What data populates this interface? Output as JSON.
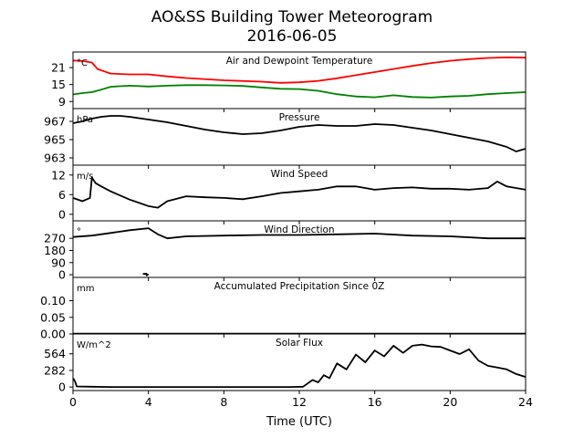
{
  "figure": {
    "title_line1": "AO&SS Building Tower Meteorogram",
    "title_line2": "2016-06-05",
    "xlabel": "Time (UTC)"
  },
  "chart_data": {
    "type": "line",
    "x_ticks": [
      0,
      4,
      8,
      12,
      16,
      20,
      24
    ],
    "x_tick_labels": [
      "0",
      "4",
      "8",
      "12",
      "16",
      "20",
      "24"
    ],
    "xlim": [
      0,
      24
    ],
    "panels": [
      {
        "id": "temp",
        "title": "Air and Dewpoint Temperature",
        "unit": "°C",
        "ylim": [
          6.5,
          26.5
        ],
        "yticks": [
          9,
          15,
          21
        ],
        "ytick_labels": [
          "9",
          "15",
          "21"
        ],
        "series": [
          {
            "color": "#ff0000",
            "x": [
              0,
              0.5,
              1,
              1.3,
              1.6,
              2,
              3,
              4,
              5,
              6,
              8,
              10,
              11,
              12,
              13,
              14,
              15,
              16,
              17,
              18,
              19,
              20,
              21,
              22,
              23,
              24
            ],
            "y": [
              23.5,
              23.3,
              22.8,
              20.5,
              19.8,
              18.9,
              18.6,
              18.6,
              17.9,
              17.3,
              16.5,
              16.0,
              15.6,
              15.8,
              16.3,
              17.2,
              18.3,
              19.4,
              20.5,
              21.6,
              22.6,
              23.4,
              24.0,
              24.4,
              24.6,
              24.5
            ]
          },
          {
            "color": "#008000",
            "x": [
              0,
              0.5,
              1,
              1.5,
              2,
              3,
              4,
              5,
              6,
              7,
              8,
              9,
              10,
              11,
              12,
              13,
              14,
              15,
              16,
              17,
              18,
              19,
              20,
              21,
              22,
              23,
              24
            ],
            "y": [
              11.5,
              12.0,
              12.3,
              13.2,
              14.2,
              14.6,
              14.3,
              14.6,
              14.8,
              14.8,
              14.7,
              14.5,
              14.0,
              13.5,
              13.4,
              12.8,
              11.6,
              10.8,
              10.5,
              11.2,
              10.6,
              10.4,
              10.8,
              11.0,
              11.6,
              12.0,
              12.3
            ]
          }
        ]
      },
      {
        "id": "pressure",
        "title": "Pressure",
        "unit": "hPa",
        "ylim": [
          962.2,
          968.4
        ],
        "yticks": [
          963,
          965,
          967
        ],
        "ytick_labels": [
          "963",
          "965",
          "967"
        ],
        "series": [
          {
            "color": "#000000",
            "x": [
              0,
              0.5,
              1,
              1.5,
              2,
              2.5,
              3,
              4,
              5,
              6,
              7,
              8,
              9,
              10,
              11,
              12,
              13,
              14,
              15,
              16,
              17,
              18,
              19,
              20,
              21,
              22,
              23,
              23.5,
              24
            ],
            "y": [
              966.8,
              967.0,
              967.3,
              967.5,
              967.6,
              967.6,
              967.5,
              967.2,
              966.9,
              966.5,
              966.1,
              965.8,
              965.6,
              965.7,
              966.0,
              966.4,
              966.6,
              966.5,
              966.5,
              966.7,
              966.6,
              966.3,
              966.0,
              965.6,
              965.2,
              964.8,
              964.2,
              963.7,
              964.0
            ]
          }
        ]
      },
      {
        "id": "wind_speed",
        "title": "Wind Speed",
        "unit": "m/s",
        "ylim": [
          -2,
          15
        ],
        "yticks": [
          0,
          6,
          12
        ],
        "ytick_labels": [
          "0",
          "6",
          "12"
        ],
        "series": [
          {
            "color": "#000000",
            "x": [
              0,
              0.5,
              0.9,
              1.0,
              1.2,
              1.5,
              2,
              3,
              4,
              4.5,
              5,
              6,
              7,
              8,
              9,
              10,
              11,
              12,
              13,
              14,
              15,
              16,
              17,
              18,
              19,
              20,
              21,
              22,
              22.5,
              23,
              24
            ],
            "y": [
              5.0,
              4.0,
              5.0,
              11.2,
              9.5,
              8.5,
              7.0,
              4.5,
              2.5,
              2.0,
              4.0,
              5.5,
              5.2,
              5.0,
              4.6,
              5.5,
              6.5,
              7.0,
              7.5,
              8.5,
              8.5,
              7.5,
              8.0,
              8.2,
              7.8,
              7.8,
              7.5,
              8.0,
              10.0,
              8.5,
              7.5
            ]
          }
        ]
      },
      {
        "id": "wind_dir",
        "title": "Wind Direction",
        "unit": "°",
        "ylim": [
          -20,
          400
        ],
        "yticks": [
          0,
          90,
          180,
          270
        ],
        "ytick_labels": [
          "0",
          "90",
          "180",
          "270"
        ],
        "series": [
          {
            "color": "#000000",
            "x": [
              0,
              1,
              2,
              3,
              4,
              4.5,
              5,
              6,
              8,
              10,
              12,
              14,
              16,
              18,
              20,
              22,
              24
            ],
            "y": [
              280,
              290,
              310,
              330,
              345,
              300,
              270,
              285,
              290,
              295,
              295,
              300,
              305,
              290,
              285,
              270,
              270
            ]
          },
          {
            "color": "#000000",
            "x": [
              3.7,
              3.9,
              3.9,
              4.0
            ],
            "y": [
              5,
              8,
              -5,
              3
            ]
          }
        ]
      },
      {
        "id": "precip",
        "title": "Accumulated Precipitation Since 0Z",
        "unit": "mm",
        "ylim": [
          0,
          0.17
        ],
        "yticks": [
          0.0,
          0.05,
          0.1
        ],
        "ytick_labels": [
          "0.00",
          "0.05",
          "0.10"
        ],
        "series": [
          {
            "color": "#000000",
            "x": [
              0,
              24
            ],
            "y": [
              0,
              0
            ]
          }
        ]
      },
      {
        "id": "solar",
        "title": "Solar Flux",
        "unit": "W/m^2",
        "ylim": [
          -60,
          900
        ],
        "yticks": [
          0,
          282,
          564
        ],
        "ytick_labels": [
          "0",
          "282",
          "564"
        ],
        "series": [
          {
            "color": "#000000",
            "x": [
              0,
              0.1,
              0.2,
              1.0,
              2.0,
              11.5,
              12.2,
              12.7,
              13.0,
              13.3,
              13.6,
              14.0,
              14.5,
              15,
              15.5,
              16,
              16.5,
              17,
              17.5,
              18,
              18.5,
              19,
              19.5,
              20,
              20.5,
              21,
              21.5,
              22,
              22.5,
              23,
              23.5,
              24
            ],
            "y": [
              150,
              100,
              10,
              5,
              0,
              0,
              5,
              120,
              80,
              200,
              150,
              400,
              300,
              550,
              420,
              620,
              520,
              700,
              580,
              700,
              720,
              690,
              680,
              620,
              560,
              640,
              450,
              360,
              330,
              300,
              220,
              170
            ]
          }
        ]
      }
    ]
  }
}
